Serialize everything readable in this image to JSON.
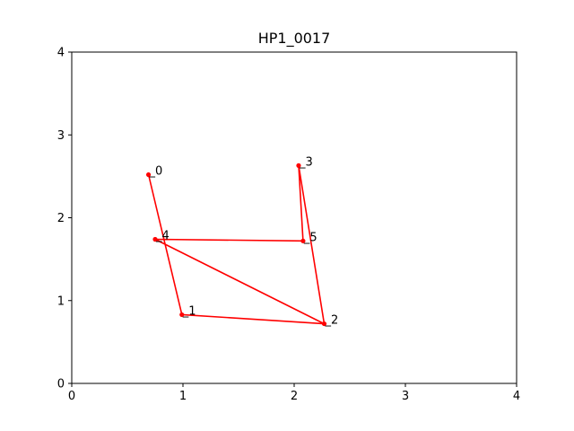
{
  "chart_data": {
    "type": "line",
    "title": "HP1_0017",
    "xlabel": "",
    "ylabel": "",
    "xlim": [
      0,
      4
    ],
    "ylim": [
      0,
      4
    ],
    "xticks": [
      0,
      1,
      2,
      3,
      4
    ],
    "yticks": [
      0,
      1,
      2,
      3,
      4
    ],
    "grid": false,
    "series_color": "#ff0000",
    "points": [
      {
        "label": "_0",
        "x": 0.69,
        "y": 2.52
      },
      {
        "label": "_1",
        "x": 0.99,
        "y": 0.83
      },
      {
        "label": "_2",
        "x": 2.27,
        "y": 0.72
      },
      {
        "label": "_3",
        "x": 2.04,
        "y": 2.63
      },
      {
        "label": "_4",
        "x": 0.75,
        "y": 1.74
      },
      {
        "label": "_5",
        "x": 2.08,
        "y": 1.72
      }
    ],
    "path_order": [
      "_0",
      "_1",
      "_2",
      "_4",
      "_5",
      "_3",
      "_2"
    ]
  }
}
